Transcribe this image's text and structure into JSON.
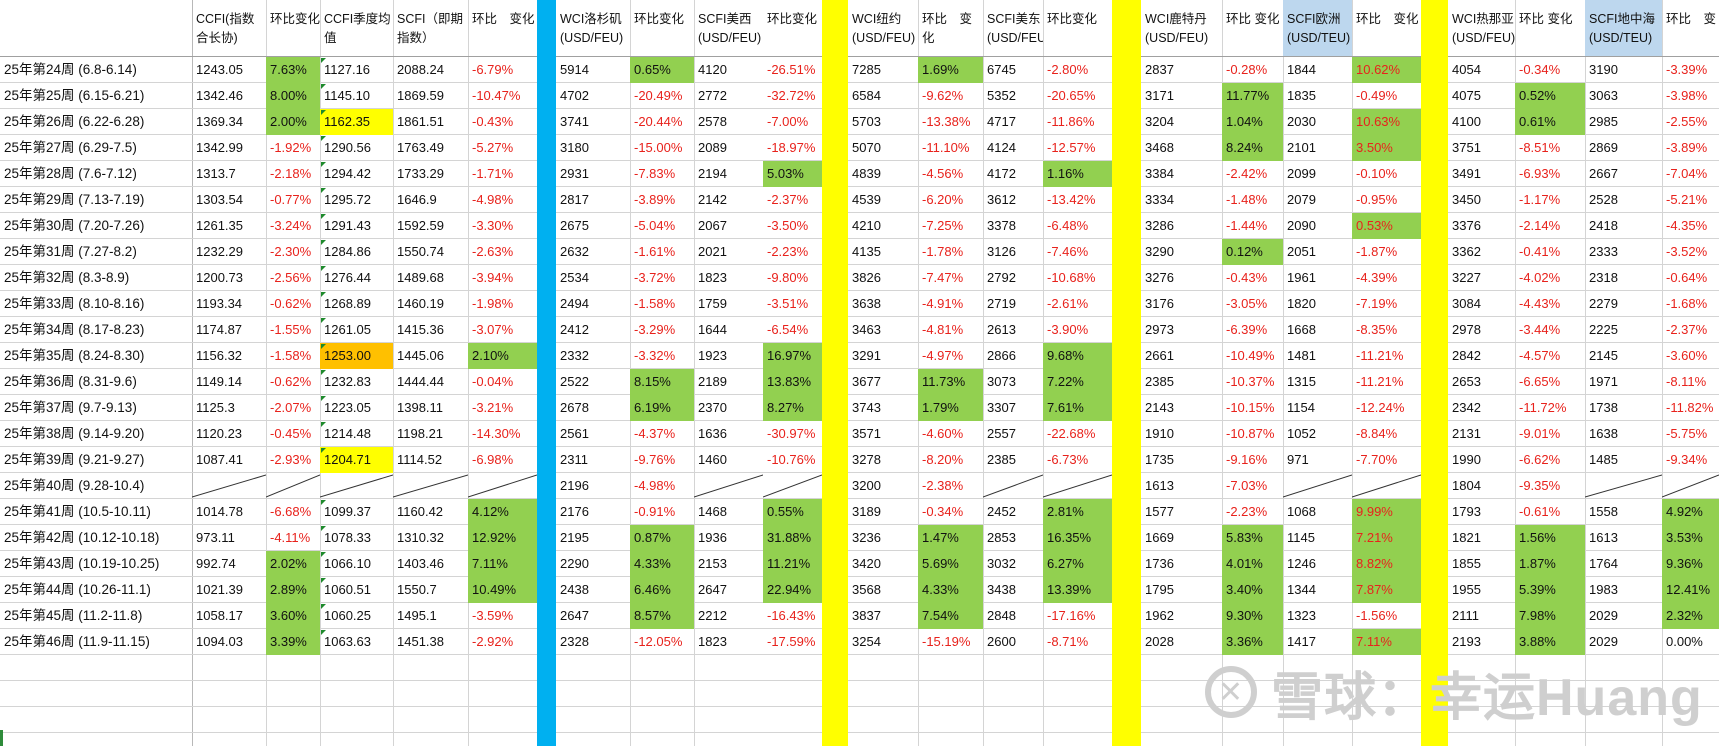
{
  "headers": [
    "",
    "CCFI(指数合长协)",
    "环比变化",
    "CCFI季度均值",
    "SCFI（即期指数）",
    "环比　变化",
    "WCI洛杉矶(USD/FEU)",
    "环比变化",
    "SCFI美西(USD/FEU)",
    "环比变化",
    "WCI纽约(USD/FEU)",
    "环比　变化",
    "SCFI美东(USD/FEU)",
    "环比变化",
    "WCI鹿特丹(USD/FEU)",
    "环比 变化",
    "SCFI欧洲(USD/TEU)",
    "环比　变化",
    "WCI热那亚(USD/FEU)",
    "环比 变化",
    "SCFI地中海(USD/TEU)",
    "环比　变"
  ],
  "rows": [
    [
      "25年第24周 (6.8-6.14)",
      "1243.05",
      "7.63%",
      "1127.16",
      "2088.24",
      "-6.79%",
      "5914",
      "0.65%",
      "4120",
      "-26.51%",
      "7285",
      "1.69%",
      "6745",
      "-2.80%",
      "2837",
      "-0.28%",
      "1844",
      "10.62%",
      "4054",
      "-0.34%",
      "3190",
      "-3.39%"
    ],
    [
      "25年第25周 (6.15-6.21)",
      "1342.46",
      "8.00%",
      "1145.10",
      "1869.59",
      "-10.47%",
      "4702",
      "-20.49%",
      "2772",
      "-32.72%",
      "6584",
      "-9.62%",
      "5352",
      "-20.65%",
      "3171",
      "11.77%",
      "1835",
      "-0.49%",
      "4075",
      "0.52%",
      "3063",
      "-3.98%"
    ],
    [
      "25年第26周 (6.22-6.28)",
      "1369.34",
      "2.00%",
      "1162.35",
      "1861.51",
      "-0.43%",
      "3741",
      "-20.44%",
      "2578",
      "-7.00%",
      "5703",
      "-13.38%",
      "4717",
      "-11.86%",
      "3204",
      "1.04%",
      "2030",
      "10.63%",
      "4100",
      "0.61%",
      "2985",
      "-2.55%"
    ],
    [
      "25年第27周 (6.29-7.5)",
      "1342.99",
      "-1.92%",
      "1290.56",
      "1763.49",
      "-5.27%",
      "3180",
      "-15.00%",
      "2089",
      "-18.97%",
      "5070",
      "-11.10%",
      "4124",
      "-12.57%",
      "3468",
      "8.24%",
      "2101",
      "3.50%",
      "3751",
      "-8.51%",
      "2869",
      "-3.89%"
    ],
    [
      "25年第28周 (7.6-7.12)",
      "1313.7",
      "-2.18%",
      "1294.42",
      "1733.29",
      "-1.71%",
      "2931",
      "-7.83%",
      "2194",
      "5.03%",
      "4839",
      "-4.56%",
      "4172",
      "1.16%",
      "3384",
      "-2.42%",
      "2099",
      "-0.10%",
      "3491",
      "-6.93%",
      "2667",
      "-7.04%"
    ],
    [
      "25年第29周 (7.13-7.19)",
      "1303.54",
      "-0.77%",
      "1295.72",
      "1646.9",
      "-4.98%",
      "2817",
      "-3.89%",
      "2142",
      "-2.37%",
      "4539",
      "-6.20%",
      "3612",
      "-13.42%",
      "3334",
      "-1.48%",
      "2079",
      "-0.95%",
      "3450",
      "-1.17%",
      "2528",
      "-5.21%"
    ],
    [
      "25年第30周 (7.20-7.26)",
      "1261.35",
      "-3.24%",
      "1291.43",
      "1592.59",
      "-3.30%",
      "2675",
      "-5.04%",
      "2067",
      "-3.50%",
      "4210",
      "-7.25%",
      "3378",
      "-6.48%",
      "3286",
      "-1.44%",
      "2090",
      "0.53%",
      "3376",
      "-2.14%",
      "2418",
      "-4.35%"
    ],
    [
      "25年第31周 (7.27-8.2)",
      "1232.29",
      "-2.30%",
      "1284.86",
      "1550.74",
      "-2.63%",
      "2632",
      "-1.61%",
      "2021",
      "-2.23%",
      "4135",
      "-1.78%",
      "3126",
      "-7.46%",
      "3290",
      "0.12%",
      "2051",
      "-1.87%",
      "3362",
      "-0.41%",
      "2333",
      "-3.52%"
    ],
    [
      "25年第32周 (8.3-8.9)",
      "1200.73",
      "-2.56%",
      "1276.44",
      "1489.68",
      "-3.94%",
      "2534",
      "-3.72%",
      "1823",
      "-9.80%",
      "3826",
      "-7.47%",
      "2792",
      "-10.68%",
      "3276",
      "-0.43%",
      "1961",
      "-4.39%",
      "3227",
      "-4.02%",
      "2318",
      "-0.64%"
    ],
    [
      "25年第33周 (8.10-8.16)",
      "1193.34",
      "-0.62%",
      "1268.89",
      "1460.19",
      "-1.98%",
      "2494",
      "-1.58%",
      "1759",
      "-3.51%",
      "3638",
      "-4.91%",
      "2719",
      "-2.61%",
      "3176",
      "-3.05%",
      "1820",
      "-7.19%",
      "3084",
      "-4.43%",
      "2279",
      "-1.68%"
    ],
    [
      "25年第34周 (8.17-8.23)",
      "1174.87",
      "-1.55%",
      "1261.05",
      "1415.36",
      "-3.07%",
      "2412",
      "-3.29%",
      "1644",
      "-6.54%",
      "3463",
      "-4.81%",
      "2613",
      "-3.90%",
      "2973",
      "-6.39%",
      "1668",
      "-8.35%",
      "2978",
      "-3.44%",
      "2225",
      "-2.37%"
    ],
    [
      "25年第35周 (8.24-8.30)",
      "1156.32",
      "-1.58%",
      "1253.00",
      "1445.06",
      "2.10%",
      "2332",
      "-3.32%",
      "1923",
      "16.97%",
      "3291",
      "-4.97%",
      "2866",
      "9.68%",
      "2661",
      "-10.49%",
      "1481",
      "-11.21%",
      "2842",
      "-4.57%",
      "2145",
      "-3.60%"
    ],
    [
      "25年第36周 (8.31-9.6)",
      "1149.14",
      "-0.62%",
      "1232.83",
      "1444.44",
      "-0.04%",
      "2522",
      "8.15%",
      "2189",
      "13.83%",
      "3677",
      "11.73%",
      "3073",
      "7.22%",
      "2385",
      "-10.37%",
      "1315",
      "-11.21%",
      "2653",
      "-6.65%",
      "1971",
      "-8.11%"
    ],
    [
      "25年第37周 (9.7-9.13)",
      "1125.3",
      "-2.07%",
      "1223.05",
      "1398.11",
      "-3.21%",
      "2678",
      "6.19%",
      "2370",
      "8.27%",
      "3743",
      "1.79%",
      "3307",
      "7.61%",
      "2143",
      "-10.15%",
      "1154",
      "-12.24%",
      "2342",
      "-11.72%",
      "1738",
      "-11.82%"
    ],
    [
      "25年第38周 (9.14-9.20)",
      "1120.23",
      "-0.45%",
      "1214.48",
      "1198.21",
      "-14.30%",
      "2561",
      "-4.37%",
      "1636",
      "-30.97%",
      "3571",
      "-4.60%",
      "2557",
      "-22.68%",
      "1910",
      "-10.87%",
      "1052",
      "-8.84%",
      "2131",
      "-9.01%",
      "1638",
      "-5.75%"
    ],
    [
      "25年第39周 (9.21-9.27)",
      "1087.41",
      "-2.93%",
      "1204.71",
      "1114.52",
      "-6.98%",
      "2311",
      "-9.76%",
      "1460",
      "-10.76%",
      "3278",
      "-8.20%",
      "2385",
      "-6.73%",
      "1735",
      "-9.16%",
      "971",
      "-7.70%",
      "1990",
      "-6.62%",
      "1485",
      "-9.34%"
    ],
    [
      "25年第40周 (9.28-10.4)",
      "",
      "",
      "",
      "",
      "",
      "2196",
      "-4.98%",
      "",
      "",
      "3200",
      "-2.38%",
      "",
      "",
      "1613",
      "-7.03%",
      "",
      "",
      "1804",
      "-9.35%",
      "",
      ""
    ],
    [
      "25年第41周 (10.5-10.11)",
      "1014.78",
      "-6.68%",
      "1099.37",
      "1160.42",
      "4.12%",
      "2176",
      "-0.91%",
      "1468",
      "0.55%",
      "3189",
      "-0.34%",
      "2452",
      "2.81%",
      "1577",
      "-2.23%",
      "1068",
      "9.99%",
      "1793",
      "-0.61%",
      "1558",
      "4.92%"
    ],
    [
      "25年第42周 (10.12-10.18)",
      "973.11",
      "-4.11%",
      "1078.33",
      "1310.32",
      "12.92%",
      "2195",
      "0.87%",
      "1936",
      "31.88%",
      "3236",
      "1.47%",
      "2853",
      "16.35%",
      "1669",
      "5.83%",
      "1145",
      "7.21%",
      "1821",
      "1.56%",
      "1613",
      "3.53%"
    ],
    [
      "25年第43周 (10.19-10.25)",
      "992.74",
      "2.02%",
      "1066.10",
      "1403.46",
      "7.11%",
      "2290",
      "4.33%",
      "2153",
      "11.21%",
      "3420",
      "5.69%",
      "3032",
      "6.27%",
      "1736",
      "4.01%",
      "1246",
      "8.82%",
      "1855",
      "1.87%",
      "1764",
      "9.36%"
    ],
    [
      "25年第44周 (10.26-11.1)",
      "1021.39",
      "2.89%",
      "1060.51",
      "1550.7",
      "10.49%",
      "2438",
      "6.46%",
      "2647",
      "22.94%",
      "3568",
      "4.33%",
      "3438",
      "13.39%",
      "1795",
      "3.40%",
      "1344",
      "7.87%",
      "1955",
      "5.39%",
      "1983",
      "12.41%"
    ],
    [
      "25年第45周 (11.2-11.8)",
      "1058.17",
      "3.60%",
      "1060.25",
      "1495.1",
      "-3.59%",
      "2647",
      "8.57%",
      "2212",
      "-16.43%",
      "3837",
      "7.54%",
      "2848",
      "-17.16%",
      "1962",
      "9.30%",
      "1323",
      "-1.56%",
      "2111",
      "7.98%",
      "2029",
      "2.32%"
    ],
    [
      "25年第46周 (11.9-11.15)",
      "1094.03",
      "3.39%",
      "1063.63",
      "1451.38",
      "-2.92%",
      "2328",
      "-12.05%",
      "1823",
      "-17.59%",
      "3254",
      "-15.19%",
      "2600",
      "-8.71%",
      "2028",
      "3.36%",
      "1417",
      "7.11%",
      "2193",
      "3.88%",
      "2029",
      "0.00%"
    ]
  ],
  "watermark": {
    "text": "雪球：幸运Huang",
    "logo": "snowball-logo-icon"
  },
  "colors": {
    "green": "#92d050",
    "yellow": "#ffff00",
    "orange": "#ffc000",
    "blue_header": "#bdd7ee",
    "cyan_separator": "#00b0f0",
    "yellow_separator": "#ffff00",
    "red_text": "#e8221c"
  }
}
